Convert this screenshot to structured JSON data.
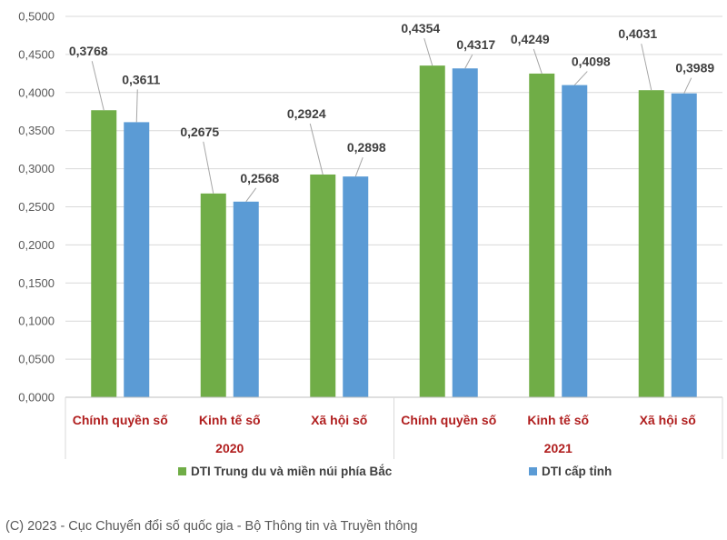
{
  "chart_data": {
    "type": "bar",
    "title": "",
    "groups": [
      {
        "year": "2020",
        "categories": [
          "Chính quyền số",
          "Kinh tế số",
          "Xã hội số"
        ]
      },
      {
        "year": "2021",
        "categories": [
          "Chính quyền số",
          "Kinh tế số",
          "Xã hội số"
        ]
      }
    ],
    "series": [
      {
        "name": "DTI Trung du và miền núi phía Bắc",
        "color": "#70ad47",
        "values": [
          0.3768,
          0.2675,
          0.2924,
          0.4354,
          0.4249,
          0.4031
        ],
        "labels": [
          "0,3768",
          "0,2675",
          "0,2924",
          "0,4354",
          "0,4249",
          "0,4031"
        ]
      },
      {
        "name": "DTI cấp tỉnh",
        "color": "#5b9bd5",
        "values": [
          0.3611,
          0.2568,
          0.2898,
          0.4317,
          0.4098,
          0.3989
        ],
        "labels": [
          "0,3611",
          "0,2568",
          "0,2898",
          "0,4317",
          "0,4098",
          "0,3989"
        ]
      }
    ],
    "ylim": [
      0,
      0.5
    ],
    "yticks": [
      "0,0000",
      "0,0500",
      "0,1000",
      "0,1500",
      "0,2000",
      "0,2500",
      "0,3000",
      "0,3500",
      "0,4000",
      "0,4500",
      "0,5000"
    ],
    "grid": true,
    "legend_position": "bottom",
    "category_label_color": "#b01e1e"
  },
  "credit": "(C) 2023 - Cục Chuyển đổi số quốc gia - Bộ Thông tin và Truyền thông"
}
